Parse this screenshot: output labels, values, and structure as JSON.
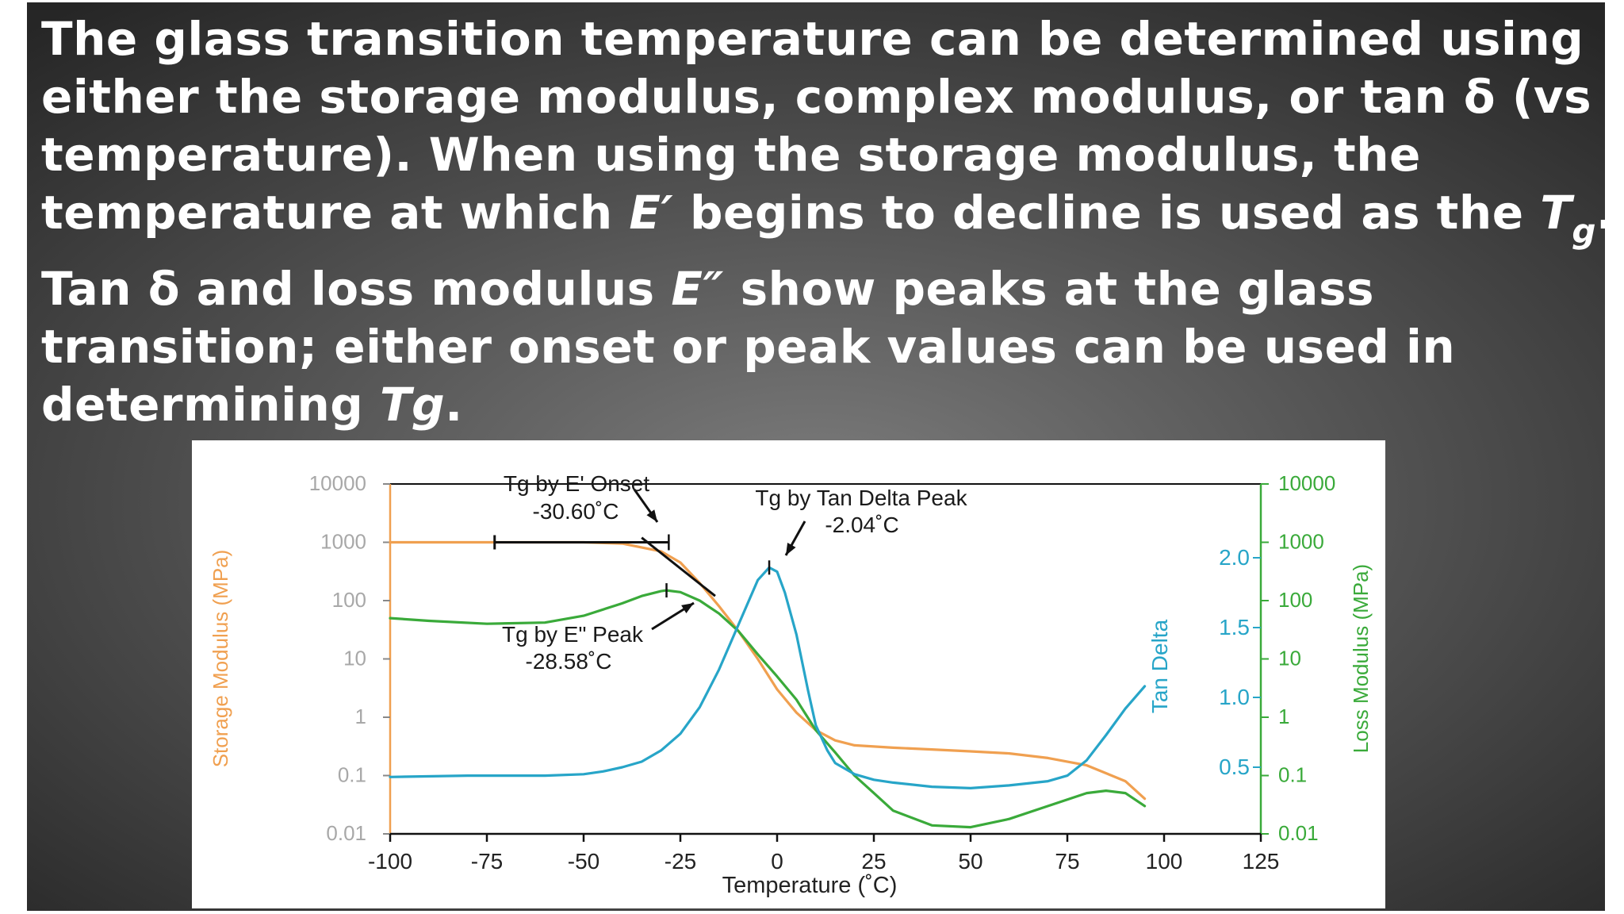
{
  "slide": {
    "text_lines": [
      [
        {
          "t": "The glass transition temperature can be determined using"
        }
      ],
      [
        {
          "t": "either the storage modulus, complex modulus, or tan δ (vs"
        }
      ],
      [
        {
          "t": "temperature). When using the storage modulus, the"
        }
      ],
      [
        {
          "t": "temperature at which "
        },
        {
          "t": "E′",
          "i": true
        },
        {
          "t": " begins to decline is used as the "
        },
        {
          "t": "T",
          "i": true
        },
        {
          "t": "g",
          "sub": true
        },
        {
          "t": "."
        }
      ],
      [
        {
          "t": "Tan δ and loss modulus "
        },
        {
          "t": "E″",
          "i": true
        },
        {
          "t": " show peaks at the glass"
        }
      ],
      [
        {
          "t": "transition; either onset or peak values can be used in"
        }
      ],
      [
        {
          "t": "determining "
        },
        {
          "t": "Tg",
          "i": true
        },
        {
          "t": "."
        }
      ]
    ]
  },
  "chart_data": {
    "type": "line",
    "xlabel": "Temperature (˚C)",
    "x_ticks": [
      -100,
      -75,
      -50,
      -25,
      0,
      25,
      50,
      75,
      100,
      125
    ],
    "xlim": [
      -100,
      125
    ],
    "axes": {
      "storage": {
        "label": "Storage Modulus (MPa)",
        "scale": "log",
        "ylim": [
          0.01,
          10000
        ],
        "ticks": [
          "10000",
          "1000",
          "100",
          "10",
          "1",
          "0.1",
          "0.01"
        ],
        "color": "#f0a050"
      },
      "tan": {
        "label": "Tan Delta",
        "scale": "linear",
        "ylim": [
          0.5,
          2.0
        ],
        "ticks": [
          "2.0",
          "1.5",
          "1.0",
          "0.5"
        ],
        "color": "#27a5c8"
      },
      "loss": {
        "label": "Loss Modulus (MPa)",
        "scale": "log",
        "ylim": [
          0.01,
          10000
        ],
        "ticks": [
          "10000",
          "1000",
          "100",
          "10",
          "1",
          "0.1",
          "0.01"
        ],
        "color": "#3aaa3a"
      }
    },
    "series": [
      {
        "axis": "storage",
        "color": "#f0a050",
        "x": [
          -100,
          -75,
          -50,
          -40,
          -30,
          -25,
          -20,
          -15,
          -10,
          -5,
          0,
          5,
          10,
          15,
          20,
          30,
          40,
          50,
          60,
          70,
          80,
          90,
          95
        ],
        "y": [
          1000,
          1000,
          1000,
          950,
          700,
          450,
          200,
          80,
          30,
          10,
          3,
          1.2,
          0.6,
          0.4,
          0.33,
          0.3,
          0.28,
          0.26,
          0.24,
          0.2,
          0.15,
          0.08,
          0.04
        ]
      },
      {
        "axis": "loss",
        "color": "#3aaa3a",
        "x": [
          -100,
          -90,
          -75,
          -60,
          -50,
          -40,
          -35,
          -30,
          -28.58,
          -25,
          -20,
          -15,
          -10,
          -5,
          0,
          5,
          10,
          15,
          20,
          25,
          30,
          40,
          50,
          60,
          70,
          80,
          85,
          90,
          95
        ],
        "y": [
          50,
          45,
          40,
          42,
          55,
          90,
          120,
          145,
          150,
          140,
          100,
          60,
          30,
          12,
          5,
          2,
          0.6,
          0.25,
          0.1,
          0.05,
          0.025,
          0.014,
          0.013,
          0.018,
          0.03,
          0.05,
          0.055,
          0.05,
          0.03
        ]
      },
      {
        "axis": "tan",
        "color": "#27a5c8",
        "x": [
          -100,
          -80,
          -60,
          -50,
          -45,
          -40,
          -35,
          -30,
          -25,
          -20,
          -15,
          -10,
          -5,
          -2.04,
          0,
          2,
          5,
          8,
          10,
          13,
          15,
          20,
          25,
          30,
          40,
          50,
          60,
          70,
          75,
          80,
          85,
          90,
          95
        ],
        "y": [
          0.43,
          0.44,
          0.44,
          0.45,
          0.47,
          0.5,
          0.54,
          0.62,
          0.74,
          0.93,
          1.2,
          1.52,
          1.84,
          1.93,
          1.9,
          1.75,
          1.45,
          1.05,
          0.8,
          0.62,
          0.53,
          0.45,
          0.41,
          0.39,
          0.36,
          0.35,
          0.37,
          0.4,
          0.44,
          0.55,
          0.73,
          0.92,
          1.08
        ]
      }
    ],
    "annotations": [
      {
        "lines": [
          "Tg by E' Onset",
          "-30.60˚C"
        ],
        "value": -30.6
      },
      {
        "lines": [
          "Tg by Tan Delta Peak",
          "-2.04˚C"
        ],
        "value": -2.04
      },
      {
        "lines": [
          "Tg by E\" Peak",
          "-28.58˚C"
        ],
        "value": -28.58
      }
    ]
  }
}
